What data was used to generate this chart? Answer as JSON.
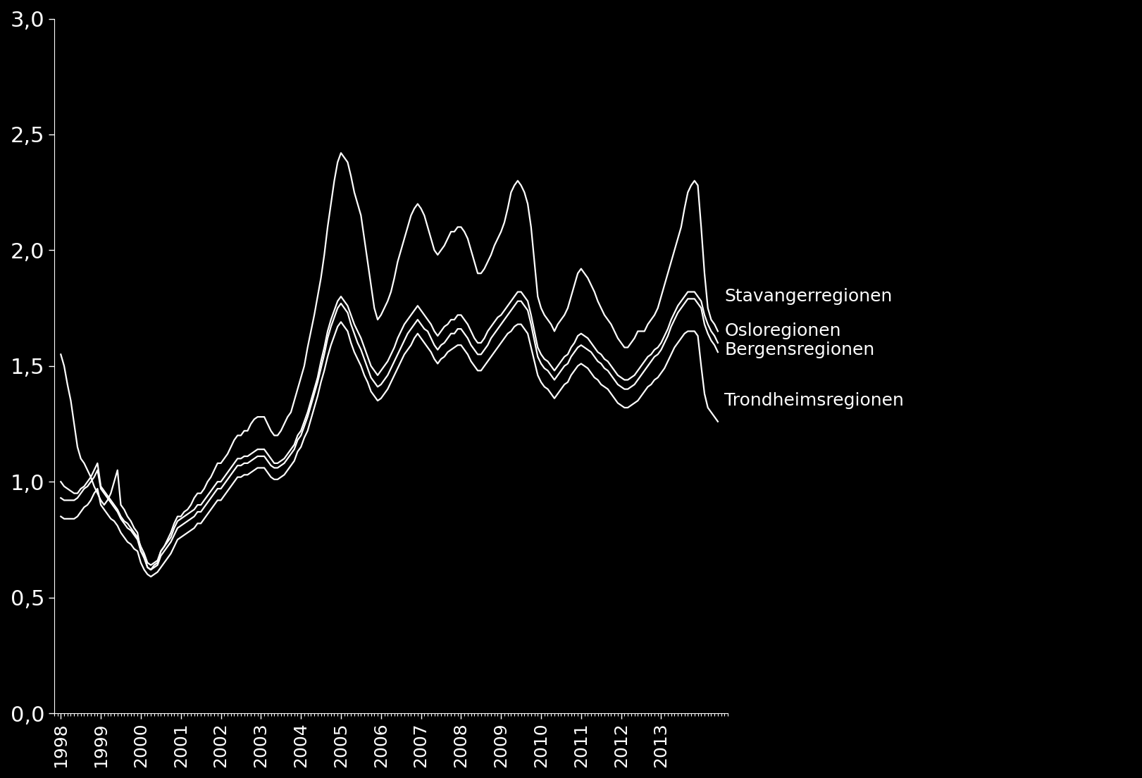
{
  "background_color": "#000000",
  "text_color": "#ffffff",
  "line_color": "#ffffff",
  "line_width": 1.6,
  "ylabel_ticks": [
    "0,0",
    "0,5",
    "1,0",
    "1,5",
    "2,0",
    "2,5",
    "3,0"
  ],
  "ytick_vals": [
    0.0,
    0.5,
    1.0,
    1.5,
    2.0,
    2.5,
    3.0
  ],
  "ylim": [
    0.0,
    3.0
  ],
  "x_tick_labels": [
    "1998",
    "1999",
    "2000",
    "2001",
    "2002",
    "2003",
    "2004",
    "2005",
    "2006",
    "2007",
    "2008",
    "2009",
    "2010",
    "2011",
    "2012",
    "2013"
  ],
  "series": {
    "Stavangerregionen": [
      1.55,
      1.5,
      1.42,
      1.35,
      1.25,
      1.15,
      1.1,
      1.08,
      1.05,
      1.02,
      0.98,
      0.95,
      0.92,
      0.9,
      0.92,
      0.95,
      1.0,
      1.05,
      0.9,
      0.88,
      0.85,
      0.83,
      0.8,
      0.78,
      0.7,
      0.68,
      0.63,
      0.62,
      0.64,
      0.65,
      0.7,
      0.72,
      0.75,
      0.78,
      0.82,
      0.85,
      0.85,
      0.87,
      0.88,
      0.9,
      0.93,
      0.95,
      0.95,
      0.97,
      1.0,
      1.02,
      1.05,
      1.08,
      1.08,
      1.1,
      1.12,
      1.15,
      1.18,
      1.2,
      1.2,
      1.22,
      1.22,
      1.25,
      1.27,
      1.28,
      1.28,
      1.28,
      1.25,
      1.22,
      1.2,
      1.2,
      1.22,
      1.25,
      1.28,
      1.3,
      1.35,
      1.4,
      1.45,
      1.5,
      1.58,
      1.65,
      1.72,
      1.8,
      1.88,
      1.98,
      2.1,
      2.2,
      2.3,
      2.38,
      2.42,
      2.4,
      2.38,
      2.32,
      2.25,
      2.2,
      2.15,
      2.05,
      1.95,
      1.85,
      1.75,
      1.7,
      1.72,
      1.75,
      1.78,
      1.82,
      1.88,
      1.95,
      2.0,
      2.05,
      2.1,
      2.15,
      2.18,
      2.2,
      2.18,
      2.15,
      2.1,
      2.05,
      2.0,
      1.98,
      2.0,
      2.02,
      2.05,
      2.08,
      2.08,
      2.1,
      2.1,
      2.08,
      2.05,
      2.0,
      1.95,
      1.9,
      1.9,
      1.92,
      1.95,
      1.98,
      2.02,
      2.05,
      2.08,
      2.12,
      2.18,
      2.25,
      2.28,
      2.3,
      2.28,
      2.25,
      2.2,
      2.1,
      1.95,
      1.8,
      1.75,
      1.72,
      1.7,
      1.68,
      1.65,
      1.68,
      1.7,
      1.72,
      1.75,
      1.8,
      1.85,
      1.9,
      1.92,
      1.9,
      1.88,
      1.85,
      1.82,
      1.78,
      1.75,
      1.72,
      1.7,
      1.68,
      1.65,
      1.62,
      1.6,
      1.58,
      1.58,
      1.6,
      1.62,
      1.65,
      1.65,
      1.65,
      1.68,
      1.7,
      1.72,
      1.75,
      1.8,
      1.85,
      1.9,
      1.95,
      2.0,
      2.05,
      2.1,
      2.18,
      2.25,
      2.28,
      2.3,
      2.28,
      2.1,
      1.9,
      1.75,
      1.7,
      1.68,
      1.65
    ],
    "Osloregionen": [
      1.0,
      0.98,
      0.97,
      0.96,
      0.95,
      0.95,
      0.97,
      0.98,
      1.0,
      1.02,
      1.05,
      1.08,
      0.98,
      0.96,
      0.94,
      0.92,
      0.9,
      0.88,
      0.85,
      0.83,
      0.82,
      0.8,
      0.78,
      0.76,
      0.72,
      0.69,
      0.65,
      0.64,
      0.65,
      0.66,
      0.7,
      0.72,
      0.74,
      0.76,
      0.8,
      0.83,
      0.84,
      0.85,
      0.86,
      0.87,
      0.88,
      0.9,
      0.9,
      0.92,
      0.94,
      0.96,
      0.98,
      1.0,
      1.0,
      1.02,
      1.04,
      1.06,
      1.08,
      1.1,
      1.1,
      1.11,
      1.11,
      1.12,
      1.13,
      1.14,
      1.14,
      1.14,
      1.12,
      1.1,
      1.08,
      1.08,
      1.09,
      1.1,
      1.12,
      1.14,
      1.16,
      1.2,
      1.22,
      1.26,
      1.3,
      1.35,
      1.4,
      1.45,
      1.52,
      1.58,
      1.65,
      1.7,
      1.74,
      1.78,
      1.8,
      1.78,
      1.76,
      1.72,
      1.68,
      1.65,
      1.62,
      1.58,
      1.54,
      1.5,
      1.48,
      1.46,
      1.48,
      1.5,
      1.52,
      1.55,
      1.58,
      1.62,
      1.65,
      1.68,
      1.7,
      1.72,
      1.74,
      1.76,
      1.74,
      1.72,
      1.7,
      1.68,
      1.65,
      1.63,
      1.65,
      1.67,
      1.68,
      1.7,
      1.7,
      1.72,
      1.72,
      1.7,
      1.68,
      1.65,
      1.62,
      1.6,
      1.6,
      1.62,
      1.65,
      1.67,
      1.69,
      1.71,
      1.72,
      1.74,
      1.76,
      1.78,
      1.8,
      1.82,
      1.82,
      1.8,
      1.78,
      1.72,
      1.65,
      1.58,
      1.55,
      1.53,
      1.52,
      1.5,
      1.48,
      1.5,
      1.52,
      1.54,
      1.55,
      1.58,
      1.6,
      1.63,
      1.64,
      1.63,
      1.62,
      1.6,
      1.58,
      1.56,
      1.55,
      1.53,
      1.52,
      1.5,
      1.48,
      1.46,
      1.45,
      1.44,
      1.44,
      1.45,
      1.46,
      1.48,
      1.5,
      1.52,
      1.54,
      1.55,
      1.57,
      1.58,
      1.6,
      1.63,
      1.66,
      1.7,
      1.73,
      1.76,
      1.78,
      1.8,
      1.82,
      1.82,
      1.82,
      1.8,
      1.78,
      1.72,
      1.68,
      1.65,
      1.63,
      1.6
    ],
    "Bergensregionen": [
      0.93,
      0.92,
      0.92,
      0.92,
      0.92,
      0.93,
      0.95,
      0.97,
      0.98,
      1.0,
      1.02,
      1.05,
      0.97,
      0.95,
      0.93,
      0.91,
      0.89,
      0.87,
      0.84,
      0.82,
      0.8,
      0.79,
      0.77,
      0.75,
      0.7,
      0.67,
      0.63,
      0.62,
      0.63,
      0.64,
      0.68,
      0.7,
      0.72,
      0.74,
      0.77,
      0.8,
      0.81,
      0.82,
      0.83,
      0.84,
      0.85,
      0.87,
      0.87,
      0.89,
      0.91,
      0.93,
      0.95,
      0.97,
      0.97,
      0.99,
      1.01,
      1.03,
      1.05,
      1.07,
      1.07,
      1.08,
      1.08,
      1.09,
      1.1,
      1.11,
      1.11,
      1.11,
      1.09,
      1.07,
      1.06,
      1.06,
      1.07,
      1.08,
      1.1,
      1.12,
      1.14,
      1.18,
      1.2,
      1.24,
      1.28,
      1.33,
      1.38,
      1.43,
      1.49,
      1.55,
      1.62,
      1.67,
      1.71,
      1.75,
      1.77,
      1.75,
      1.73,
      1.68,
      1.64,
      1.6,
      1.57,
      1.53,
      1.49,
      1.45,
      1.43,
      1.41,
      1.42,
      1.44,
      1.46,
      1.49,
      1.52,
      1.55,
      1.58,
      1.61,
      1.64,
      1.66,
      1.68,
      1.7,
      1.68,
      1.66,
      1.65,
      1.62,
      1.59,
      1.57,
      1.59,
      1.6,
      1.62,
      1.64,
      1.64,
      1.66,
      1.66,
      1.64,
      1.62,
      1.59,
      1.57,
      1.55,
      1.55,
      1.57,
      1.59,
      1.62,
      1.64,
      1.66,
      1.68,
      1.7,
      1.72,
      1.74,
      1.76,
      1.78,
      1.78,
      1.76,
      1.74,
      1.68,
      1.61,
      1.54,
      1.51,
      1.49,
      1.48,
      1.46,
      1.44,
      1.46,
      1.48,
      1.5,
      1.51,
      1.54,
      1.56,
      1.58,
      1.59,
      1.58,
      1.57,
      1.56,
      1.54,
      1.52,
      1.51,
      1.49,
      1.48,
      1.46,
      1.44,
      1.42,
      1.41,
      1.4,
      1.4,
      1.41,
      1.42,
      1.44,
      1.46,
      1.48,
      1.5,
      1.52,
      1.54,
      1.55,
      1.57,
      1.6,
      1.63,
      1.67,
      1.7,
      1.73,
      1.75,
      1.77,
      1.79,
      1.79,
      1.79,
      1.77,
      1.75,
      1.68,
      1.64,
      1.61,
      1.59,
      1.56
    ],
    "Trondheimsregionen": [
      0.85,
      0.84,
      0.84,
      0.84,
      0.84,
      0.85,
      0.87,
      0.89,
      0.9,
      0.92,
      0.95,
      0.97,
      0.9,
      0.88,
      0.86,
      0.84,
      0.83,
      0.81,
      0.78,
      0.76,
      0.74,
      0.73,
      0.71,
      0.7,
      0.65,
      0.62,
      0.6,
      0.59,
      0.6,
      0.61,
      0.63,
      0.65,
      0.67,
      0.69,
      0.72,
      0.75,
      0.76,
      0.77,
      0.78,
      0.79,
      0.8,
      0.82,
      0.82,
      0.84,
      0.86,
      0.88,
      0.9,
      0.92,
      0.92,
      0.94,
      0.96,
      0.98,
      1.0,
      1.02,
      1.02,
      1.03,
      1.03,
      1.04,
      1.05,
      1.06,
      1.06,
      1.06,
      1.04,
      1.02,
      1.01,
      1.01,
      1.02,
      1.03,
      1.05,
      1.07,
      1.09,
      1.13,
      1.15,
      1.19,
      1.22,
      1.27,
      1.32,
      1.37,
      1.43,
      1.48,
      1.54,
      1.59,
      1.63,
      1.67,
      1.69,
      1.67,
      1.65,
      1.6,
      1.56,
      1.53,
      1.5,
      1.46,
      1.43,
      1.39,
      1.37,
      1.35,
      1.36,
      1.38,
      1.4,
      1.43,
      1.46,
      1.49,
      1.52,
      1.55,
      1.57,
      1.59,
      1.62,
      1.64,
      1.62,
      1.6,
      1.58,
      1.56,
      1.53,
      1.51,
      1.53,
      1.54,
      1.56,
      1.57,
      1.58,
      1.59,
      1.59,
      1.57,
      1.55,
      1.52,
      1.5,
      1.48,
      1.48,
      1.5,
      1.52,
      1.54,
      1.56,
      1.58,
      1.6,
      1.62,
      1.64,
      1.65,
      1.67,
      1.68,
      1.68,
      1.66,
      1.64,
      1.58,
      1.52,
      1.46,
      1.43,
      1.41,
      1.4,
      1.38,
      1.36,
      1.38,
      1.4,
      1.42,
      1.43,
      1.46,
      1.48,
      1.5,
      1.51,
      1.5,
      1.49,
      1.47,
      1.45,
      1.44,
      1.42,
      1.41,
      1.4,
      1.38,
      1.36,
      1.34,
      1.33,
      1.32,
      1.32,
      1.33,
      1.34,
      1.35,
      1.37,
      1.39,
      1.41,
      1.42,
      1.44,
      1.45,
      1.47,
      1.49,
      1.52,
      1.55,
      1.58,
      1.6,
      1.62,
      1.64,
      1.65,
      1.65,
      1.65,
      1.63,
      1.5,
      1.38,
      1.32,
      1.3,
      1.28,
      1.26
    ]
  }
}
